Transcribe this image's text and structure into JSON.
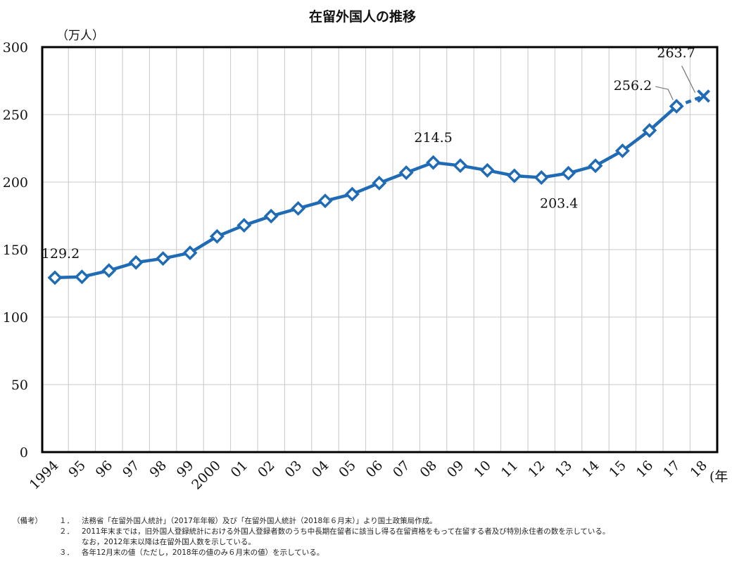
{
  "chart_data": {
    "type": "line",
    "title": "在留外国人の推移",
    "ylabel": "（万人）",
    "xlabel": "(年",
    "ylim": [
      0,
      300
    ],
    "yticks": [
      0,
      50,
      100,
      150,
      200,
      250,
      300
    ],
    "grid": true,
    "categories": [
      "1994",
      "95",
      "96",
      "97",
      "98",
      "99",
      "2000",
      "01",
      "02",
      "03",
      "04",
      "05",
      "06",
      "07",
      "08",
      "09",
      "10",
      "11",
      "12",
      "13",
      "14",
      "15",
      "16",
      "17",
      "18"
    ],
    "series": [
      {
        "values": [
          129.2,
          129.8,
          134.5,
          140.5,
          143.4,
          147.6,
          159.8,
          168.0,
          174.8,
          180.5,
          186.1,
          191.1,
          199.3,
          207.0,
          214.5,
          212.2,
          208.7,
          204.7,
          203.4,
          206.6,
          212.1,
          223.2,
          238.3,
          256.2,
          263.7
        ]
      }
    ],
    "annotations": [
      {
        "category": "1994",
        "text": "129.2"
      },
      {
        "category": "08",
        "text": "214.5"
      },
      {
        "category": "12",
        "text": "203.4"
      },
      {
        "category": "17",
        "text": "256.2"
      },
      {
        "category": "18",
        "text": "263.7"
      }
    ],
    "colors": {
      "line": "#1f6bb5",
      "grid": "#c8c8c8",
      "frame": "#000000"
    }
  },
  "notes": {
    "tag": "（備考）",
    "items": [
      {
        "num": "１．",
        "text": "法務省「在留外国人統計」（2017年年報）及び「在留外国人統計（2018年６月末）」より国土政策局作成。"
      },
      {
        "num": "２．",
        "text": "2011年末までは，旧外国人登録統計における外国人登録者数のうち中長期在留者に該当し得る在留資格をもって在留する者及び特別永住者の数を示している。"
      },
      {
        "num": "",
        "text": "なお，2012年末以降は在留外国人数を示している。"
      },
      {
        "num": "３．",
        "text": "各年12月末の値（ただし，2018年の値のみ６月末の値）を示している。"
      }
    ]
  }
}
